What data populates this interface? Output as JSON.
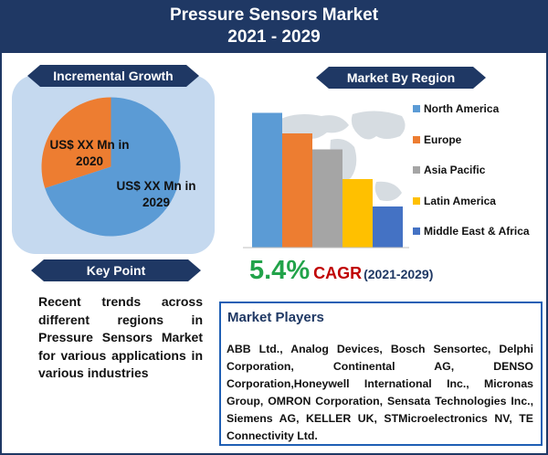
{
  "header": {
    "title_line1": "Pressure Sensors Market",
    "title_line2": "2021 - 2029"
  },
  "incremental_growth": {
    "banner": "Incremental Growth",
    "label_2020": "US$ XX Mn in 2020",
    "label_2029": "US$ XX Mn in 2029",
    "colors": {
      "2020": "#ed7d31",
      "2029": "#5b9bd5"
    }
  },
  "key_point": {
    "banner": "Key Point",
    "text": "Recent trends across different regions in Pressure Sensors Market for various applications in various industries"
  },
  "market_by_region": {
    "banner": "Market By Region"
  },
  "cagr": {
    "value": "5.4%",
    "label": "CAGR",
    "years": "(2021-2029)"
  },
  "market_players": {
    "heading": "Market Players",
    "text": "ABB Ltd., Analog Devices, Bosch Sensortec, Delphi Corporation, Continental AG, DENSO Corporation,Honeywell International Inc., Micronas Group, OMRON Corporation, Sensata Technologies Inc., Siemens AG, KELLER UK, STMicroelectronics NV, TE Connectivity Ltd."
  },
  "chart_data": [
    {
      "type": "pie",
      "categories": [
        "2020",
        "2029"
      ],
      "values": [
        30,
        70
      ],
      "data_labels": [
        "US$ XX Mn in 2020",
        "US$ XX Mn in 2029"
      ],
      "colors": [
        "#ed7d31",
        "#5b9bd5"
      ]
    },
    {
      "type": "bar",
      "title": "Market By Region",
      "categories": [
        "North America",
        "Europe",
        "Asia Pacific",
        "Latin America",
        "Middle East & Africa"
      ],
      "values": [
        5.9,
        5.0,
        4.3,
        3.0,
        1.8
      ],
      "ylim": [
        0,
        6.0
      ],
      "colors": [
        "#5b9bd5",
        "#ed7d31",
        "#a5a5a5",
        "#ffc000",
        "#4472c4"
      ],
      "legend": "right",
      "grid": false
    }
  ]
}
